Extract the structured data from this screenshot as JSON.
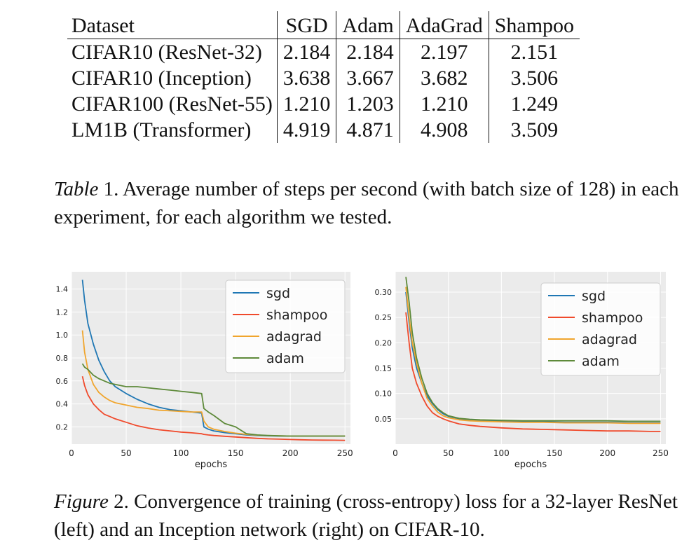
{
  "table": {
    "headers": [
      "Dataset",
      "SGD",
      "Adam",
      "AdaGrad",
      "Shampoo"
    ],
    "rows": [
      [
        "CIFAR10 (ResNet-32)",
        "2.184",
        "2.184",
        "2.197",
        "2.151"
      ],
      [
        "CIFAR10 (Inception)",
        "3.638",
        "3.667",
        "3.682",
        "3.506"
      ],
      [
        "CIFAR100 (ResNet-55)",
        "1.210",
        "1.203",
        "1.210",
        "1.249"
      ],
      [
        "LM1B (Transformer)",
        "4.919",
        "4.871",
        "4.908",
        "3.509"
      ]
    ]
  },
  "table_caption": {
    "label": "Table",
    "number": " 1.",
    "text": " Average number of steps per second (with batch size of 128) in each experiment, for each algorithm we tested."
  },
  "figure_caption": {
    "label": "Figure",
    "number": " 2.",
    "text": " Convergence of training (cross-entropy) loss for a 32-layer ResNet (left) and an Inception network (right) on CIFAR-10."
  },
  "colors": {
    "sgd": "#1f77b4",
    "shampoo": "#f04a2c",
    "adagrad": "#f0a52d",
    "adam": "#5e8a3a",
    "plot_bg": "#ebebeb",
    "grid": "#ffffff"
  },
  "chart_data": [
    {
      "type": "line",
      "xlabel": "epochs",
      "ylabel": "",
      "xlim": [
        0,
        255
      ],
      "ylim": [
        0.05,
        1.55
      ],
      "xticks": [
        0,
        50,
        100,
        150,
        200,
        250
      ],
      "yticks": [
        0.2,
        0.4,
        0.6,
        0.8,
        1.0,
        1.2,
        1.4
      ],
      "ytick_labels": [
        "0.2",
        "0.4",
        "0.6",
        "0.8",
        "1.0",
        "1.2",
        "1.4"
      ],
      "grid": true,
      "legend_position": "top-right",
      "x": [
        10,
        12,
        15,
        20,
        25,
        30,
        35,
        40,
        50,
        60,
        70,
        80,
        90,
        100,
        110,
        119,
        121,
        125,
        130,
        140,
        150,
        160,
        170,
        180,
        190,
        200,
        210,
        220,
        230,
        240,
        250
      ],
      "series": [
        {
          "name": "sgd",
          "color": "#1f77b4",
          "values": [
            1.48,
            1.3,
            1.1,
            0.92,
            0.78,
            0.68,
            0.6,
            0.55,
            0.49,
            0.44,
            0.4,
            0.37,
            0.35,
            0.34,
            0.33,
            0.32,
            0.2,
            0.18,
            0.165,
            0.15,
            0.14,
            0.13,
            0.125,
            0.122,
            0.12,
            0.12,
            0.12,
            0.12,
            0.12,
            0.12,
            0.12
          ]
        },
        {
          "name": "shampoo",
          "color": "#f04a2c",
          "values": [
            0.64,
            0.56,
            0.48,
            0.4,
            0.35,
            0.31,
            0.29,
            0.27,
            0.24,
            0.21,
            0.19,
            0.175,
            0.165,
            0.155,
            0.148,
            0.14,
            0.135,
            0.13,
            0.125,
            0.118,
            0.112,
            0.106,
            0.1,
            0.096,
            0.093,
            0.09,
            0.088,
            0.086,
            0.085,
            0.084,
            0.083
          ]
        },
        {
          "name": "adagrad",
          "color": "#f0a52d",
          "values": [
            1.04,
            0.85,
            0.7,
            0.57,
            0.5,
            0.46,
            0.43,
            0.41,
            0.39,
            0.37,
            0.36,
            0.345,
            0.34,
            0.335,
            0.33,
            0.33,
            0.25,
            0.2,
            0.18,
            0.16,
            0.145,
            0.135,
            0.128,
            0.124,
            0.122,
            0.12,
            0.12,
            0.12,
            0.12,
            0.12,
            0.12
          ]
        },
        {
          "name": "adam",
          "color": "#5e8a3a",
          "values": [
            0.75,
            0.72,
            0.7,
            0.65,
            0.62,
            0.6,
            0.58,
            0.57,
            0.55,
            0.55,
            0.54,
            0.53,
            0.52,
            0.51,
            0.5,
            0.49,
            0.36,
            0.33,
            0.3,
            0.23,
            0.2,
            0.14,
            0.13,
            0.125,
            0.122,
            0.12,
            0.12,
            0.12,
            0.12,
            0.12,
            0.12
          ]
        }
      ]
    },
    {
      "type": "line",
      "xlabel": "epochs",
      "ylabel": "",
      "xlim": [
        0,
        255
      ],
      "ylim": [
        0.0,
        0.34
      ],
      "xticks": [
        0,
        50,
        100,
        150,
        200,
        250
      ],
      "yticks": [
        0.05,
        0.1,
        0.15,
        0.2,
        0.25,
        0.3
      ],
      "ytick_labels": [
        "0.05",
        "0.10",
        "0.15",
        "0.20",
        "0.25",
        "0.30"
      ],
      "grid": true,
      "legend_position": "top-right",
      "x": [
        10,
        13,
        16,
        20,
        25,
        30,
        35,
        40,
        45,
        50,
        60,
        70,
        80,
        100,
        120,
        140,
        160,
        180,
        200,
        220,
        240,
        250
      ],
      "series": [
        {
          "name": "sgd",
          "color": "#1f77b4",
          "values": [
            0.3,
            0.24,
            0.19,
            0.15,
            0.12,
            0.095,
            0.08,
            0.068,
            0.06,
            0.055,
            0.05,
            0.048,
            0.046,
            0.045,
            0.044,
            0.044,
            0.043,
            0.043,
            0.043,
            0.042,
            0.042,
            0.042
          ]
        },
        {
          "name": "shampoo",
          "color": "#f04a2c",
          "values": [
            0.26,
            0.2,
            0.15,
            0.12,
            0.095,
            0.075,
            0.062,
            0.055,
            0.05,
            0.046,
            0.04,
            0.037,
            0.035,
            0.032,
            0.03,
            0.029,
            0.028,
            0.027,
            0.026,
            0.026,
            0.025,
            0.025
          ]
        },
        {
          "name": "adagrad",
          "color": "#f0a52d",
          "values": [
            0.31,
            0.25,
            0.2,
            0.16,
            0.12,
            0.09,
            0.075,
            0.063,
            0.056,
            0.052,
            0.048,
            0.046,
            0.045,
            0.044,
            0.043,
            0.043,
            0.042,
            0.042,
            0.042,
            0.041,
            0.041,
            0.041
          ]
        },
        {
          "name": "adam",
          "color": "#5e8a3a",
          "values": [
            0.33,
            0.28,
            0.22,
            0.17,
            0.13,
            0.1,
            0.082,
            0.07,
            0.062,
            0.056,
            0.051,
            0.049,
            0.048,
            0.047,
            0.046,
            0.046,
            0.046,
            0.046,
            0.046,
            0.045,
            0.045,
            0.045
          ]
        }
      ]
    }
  ]
}
